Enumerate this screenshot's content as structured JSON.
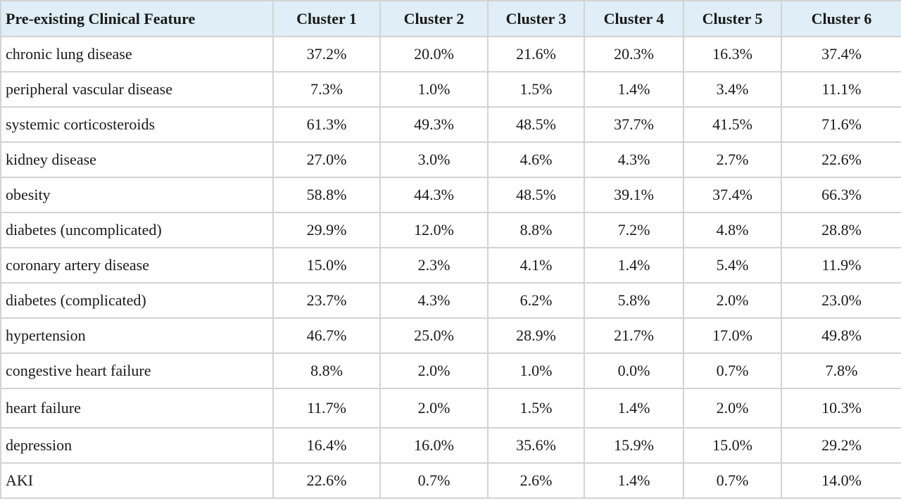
{
  "table": {
    "headers": [
      "Pre-existing Clinical Feature",
      "Cluster 1",
      "Cluster 2",
      "Cluster 3",
      "Cluster 4",
      "Cluster 5",
      "Cluster 6"
    ],
    "rows": [
      [
        "chronic lung disease",
        "37.2%",
        "20.0%",
        "21.6%",
        "20.3%",
        "16.3%",
        "37.4%"
      ],
      [
        "peripheral vascular disease",
        "7.3%",
        "1.0%",
        "1.5%",
        "1.4%",
        "3.4%",
        "11.1%"
      ],
      [
        "systemic corticosteroids",
        "61.3%",
        "49.3%",
        "48.5%",
        "37.7%",
        "41.5%",
        "71.6%"
      ],
      [
        "kidney disease",
        "27.0%",
        "3.0%",
        "4.6%",
        "4.3%",
        "2.7%",
        "22.6%"
      ],
      [
        "obesity",
        "58.8%",
        "44.3%",
        "48.5%",
        "39.1%",
        "37.4%",
        "66.3%"
      ],
      [
        "diabetes (uncomplicated)",
        "29.9%",
        "12.0%",
        "8.8%",
        "7.2%",
        "4.8%",
        "28.8%"
      ],
      [
        "coronary artery disease",
        "15.0%",
        "2.3%",
        "4.1%",
        "1.4%",
        "5.4%",
        "11.9%"
      ],
      [
        "diabetes (complicated)",
        "23.7%",
        "4.3%",
        "6.2%",
        "5.8%",
        "2.0%",
        "23.0%"
      ],
      [
        "hypertension",
        "46.7%",
        "25.0%",
        "28.9%",
        "21.7%",
        "17.0%",
        "49.8%"
      ],
      [
        "congestive heart failure",
        "8.8%",
        "2.0%",
        "1.0%",
        "0.0%",
        "0.7%",
        "7.8%"
      ],
      [
        "heart failure",
        "11.7%",
        "2.0%",
        "1.5%",
        "1.4%",
        "2.0%",
        "10.3%"
      ],
      [
        "depression",
        "16.4%",
        "16.0%",
        "35.6%",
        "15.9%",
        "15.0%",
        "29.2%"
      ],
      [
        "AKI",
        "22.6%",
        "0.7%",
        "2.6%",
        "1.4%",
        "0.7%",
        "14.0%"
      ]
    ]
  },
  "colors": {
    "header_background": "#dfeef7",
    "grid_line": "#d3d3d3"
  }
}
